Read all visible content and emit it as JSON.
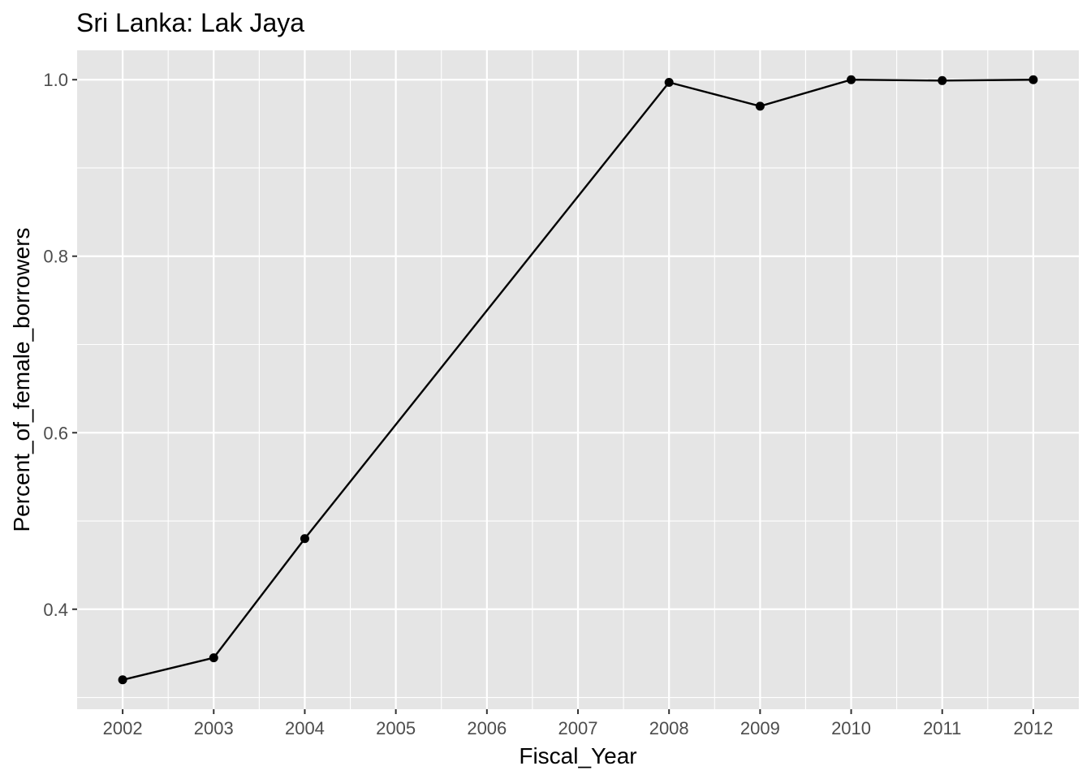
{
  "chart_data": {
    "type": "line",
    "title": "Sri Lanka:  Lak Jaya",
    "xlabel": "Fiscal_Year",
    "ylabel": "Percent_of_female_borrowers",
    "x": [
      2002,
      2003,
      2004,
      2008,
      2009,
      2010,
      2011,
      2012
    ],
    "series": [
      {
        "values": [
          0.32,
          0.345,
          0.48,
          0.997,
          0.97,
          1.0,
          0.999,
          1.0
        ]
      }
    ],
    "xticks": [
      "2002",
      "2003",
      "2004",
      "2005",
      "2006",
      "2007",
      "2008",
      "2009",
      "2010",
      "2011",
      "2012"
    ],
    "yticks": [
      "0.4",
      "0.6",
      "0.8",
      "1.0"
    ],
    "xlim": [
      2001.5,
      2012.5
    ],
    "ylim": [
      0.2867,
      1.0333
    ],
    "grid": true,
    "colors": {
      "panel": "#e5e5e5",
      "grid": "#ffffff",
      "line": "#000000",
      "point": "#000000"
    }
  }
}
